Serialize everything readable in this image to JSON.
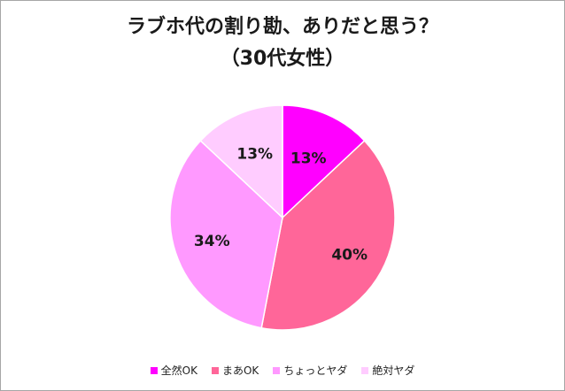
{
  "title_line1": "ラブホ代の割り勘、ありだと思う？",
  "title_line2": "（30代女性）",
  "chart_data": {
    "type": "pie",
    "title": "ラブホ代の割り勘、ありだと思う？（30代女性）",
    "categories": [
      "全然OK",
      "まあOK",
      "ちょっとヤダ",
      "絶対ヤダ"
    ],
    "values": [
      13,
      40,
      34,
      13
    ],
    "labels": [
      "13%",
      "40%",
      "34%",
      "13%"
    ],
    "colors": [
      "#ff00ff",
      "#ff6699",
      "#ff99ff",
      "#ffccff"
    ],
    "start": "12 o'clock, clockwise",
    "legend_position": "bottom"
  }
}
